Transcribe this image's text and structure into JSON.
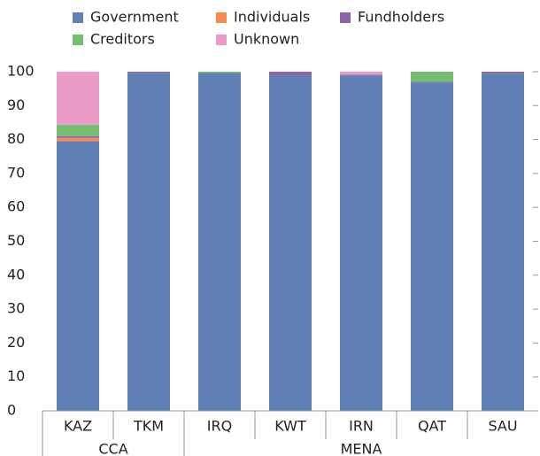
{
  "chart_data": {
    "type": "stacked_bar",
    "categories": [
      "KAZ",
      "TKM",
      "IRQ",
      "KWT",
      "IRN",
      "QAT",
      "SAU"
    ],
    "groups": [
      {
        "label": "CCA",
        "categories": [
          "KAZ",
          "TKM"
        ]
      },
      {
        "label": "MENA",
        "categories": [
          "IRQ",
          "KWT",
          "IRN",
          "QAT",
          "SAU"
        ]
      }
    ],
    "series": [
      {
        "name": "Government",
        "color": "#5f7fb5",
        "values": [
          79.5,
          99.7,
          99.6,
          98.8,
          98.8,
          96.8,
          99.4
        ]
      },
      {
        "name": "Individuals",
        "color": "#f58b52",
        "values": [
          1,
          0,
          0,
          0,
          0,
          0,
          0
        ]
      },
      {
        "name": "Fundholders",
        "color": "#8a63a8",
        "values": [
          0.5,
          0.3,
          0,
          1.2,
          0.3,
          0.2,
          0.6
        ]
      },
      {
        "name": "Creditors",
        "color": "#72bf72",
        "values": [
          3.3,
          0,
          0.4,
          0,
          0,
          3,
          0
        ]
      },
      {
        "name": "Unknown",
        "color": "#ec9ac6",
        "values": [
          15.7,
          0,
          0,
          0,
          0.9,
          0,
          0
        ]
      }
    ],
    "ylim": [
      0,
      100
    ],
    "yticks": [
      0,
      10,
      20,
      30,
      40,
      50,
      60,
      70,
      80,
      90,
      100
    ],
    "grid": false
  }
}
